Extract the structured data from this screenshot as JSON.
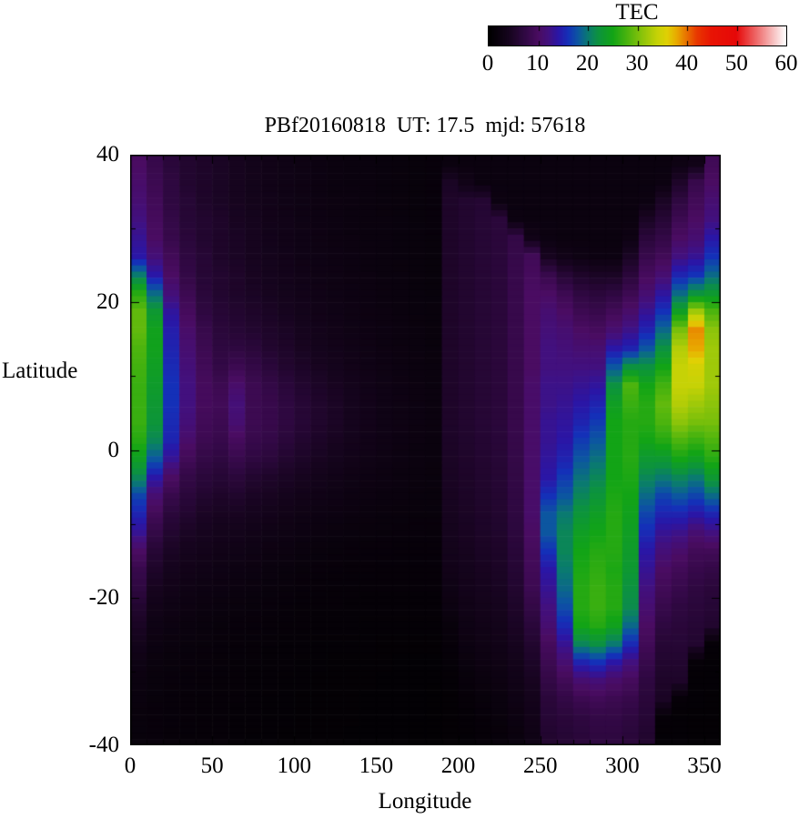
{
  "title": "PBf20160818  UT: 17.5  mjd: 57618",
  "colorbar": {
    "title": "TEC",
    "min": 0,
    "max": 60,
    "tick_labels": [
      0,
      10,
      20,
      30,
      40,
      50,
      60
    ],
    "palette_stops": [
      [
        0,
        "#000000"
      ],
      [
        4,
        "#16041e"
      ],
      [
        7,
        "#2e0840"
      ],
      [
        10,
        "#4a0c62"
      ],
      [
        12,
        "#42107e"
      ],
      [
        14,
        "#2a16a6"
      ],
      [
        16,
        "#1430b8"
      ],
      [
        18,
        "#0c56a0"
      ],
      [
        20,
        "#0a7a70"
      ],
      [
        22,
        "#0c9240"
      ],
      [
        25,
        "#12a416"
      ],
      [
        28,
        "#4cb40e"
      ],
      [
        31,
        "#8cc40a"
      ],
      [
        34,
        "#c6d206"
      ],
      [
        36,
        "#e0d004"
      ],
      [
        38,
        "#e8a800"
      ],
      [
        40,
        "#e87000"
      ],
      [
        42,
        "#e83800"
      ],
      [
        45,
        "#e81404"
      ],
      [
        50,
        "#e60808"
      ],
      [
        54,
        "#ee6868"
      ],
      [
        57,
        "#f6b4b4"
      ],
      [
        60,
        "#ffffff"
      ]
    ]
  },
  "chart_data": {
    "type": "heatmap",
    "title": "PBf20160818  UT: 17.5  mjd: 57618",
    "xlabel": "Longitude",
    "ylabel": "Latitude",
    "colorbar_label": "TEC",
    "xlim": [
      0,
      360
    ],
    "ylim": [
      -40,
      40
    ],
    "zlim": [
      0,
      60
    ],
    "xticks_major": [
      0,
      50,
      100,
      150,
      200,
      250,
      300,
      350
    ],
    "xticks_minor_step": 10,
    "yticks_major": [
      40,
      20,
      0,
      -20,
      -40
    ],
    "yticks_minor_step": 10,
    "grid": {
      "lon_start": 5,
      "lon_step": 10,
      "n_lon": 36,
      "lat_start": 38.75,
      "lat_step": -2.5,
      "n_lat": 32,
      "order": "values[lon_index][lat_index], lon ascending 0-360, lat descending +40 to -40",
      "units": "TECU",
      "values": [
        [
          10,
          10.5,
          11,
          12,
          13,
          14,
          20,
          26,
          29,
          29,
          28,
          27.5,
          27,
          27,
          27,
          26,
          24,
          21,
          17,
          15,
          13,
          10,
          8,
          7,
          5.5,
          4.5,
          3.5,
          2.5,
          2,
          1.8,
          1.6,
          1.5
        ],
        [
          8,
          8.5,
          9,
          9.5,
          10,
          11.5,
          14,
          19,
          23,
          24.5,
          24.5,
          24,
          23.5,
          23,
          22.5,
          21,
          18,
          14,
          11,
          9,
          7.5,
          6,
          5,
          4,
          3.2,
          2.6,
          2.2,
          1.8,
          1.6,
          1.5,
          1.4,
          1.4
        ],
        [
          6.5,
          7,
          7,
          7.5,
          8,
          9,
          10,
          11.5,
          13.5,
          14.5,
          15,
          15.5,
          16,
          16,
          15.5,
          15,
          13,
          10,
          8,
          6.5,
          5.5,
          4.5,
          3.8,
          3.2,
          2.6,
          2.2,
          1.8,
          1.6,
          1.4,
          1.3,
          1.3,
          1.2
        ],
        [
          5.5,
          5.5,
          6,
          6,
          6.5,
          7,
          7.5,
          8.5,
          9.5,
          10.5,
          11,
          11.5,
          12,
          12,
          11.5,
          10.5,
          9,
          7.5,
          6.5,
          5.5,
          4.5,
          3.8,
          3.2,
          2.7,
          2.3,
          1.9,
          1.6,
          1.4,
          1.3,
          1.2,
          1.2,
          1.1
        ],
        [
          5,
          5,
          5,
          5.5,
          5.5,
          6,
          6,
          6.5,
          7,
          8,
          8.5,
          9,
          9.5,
          9.5,
          9,
          8.5,
          7.5,
          6.5,
          5.5,
          4.5,
          4,
          3.4,
          2.9,
          2.4,
          2,
          1.7,
          1.5,
          1.3,
          1.2,
          1.1,
          1.1,
          1
        ],
        [
          4.5,
          4.5,
          4.5,
          5,
          5,
          5,
          5.5,
          5.5,
          6,
          6.5,
          7,
          7.5,
          8.5,
          9,
          8.5,
          8,
          7,
          6,
          5,
          4.2,
          3.6,
          3,
          2.6,
          2.2,
          1.8,
          1.5,
          1.3,
          1.2,
          1.1,
          1,
          1,
          1
        ],
        [
          4,
          4,
          4,
          4.2,
          4.5,
          4.5,
          5,
          5,
          5.5,
          6,
          7,
          8.5,
          10.5,
          11.5,
          11,
          9.5,
          8,
          6.5,
          5.2,
          4.2,
          3.5,
          2.9,
          2.4,
          2,
          1.7,
          1.4,
          1.2,
          1.1,
          1,
          1,
          0.9,
          0.9
        ],
        [
          3.5,
          3.5,
          3.5,
          3.8,
          4,
          4,
          4.2,
          4.5,
          5,
          5.5,
          6.5,
          7.5,
          8.5,
          8.5,
          8.5,
          8,
          7,
          5.5,
          4.5,
          3.8,
          3.1,
          2.6,
          2.2,
          1.8,
          1.5,
          1.3,
          1.1,
          1,
          0.9,
          0.9,
          0.9,
          0.8
        ],
        [
          3,
          3,
          3.2,
          3.2,
          3.4,
          3.6,
          3.8,
          4,
          4.5,
          5,
          5.5,
          6.5,
          7.5,
          8,
          8,
          7.5,
          6.5,
          5,
          4.2,
          3.4,
          2.8,
          2.3,
          1.9,
          1.6,
          1.4,
          1.2,
          1,
          0.9,
          0.9,
          0.8,
          0.8,
          0.8
        ],
        [
          2.8,
          2.8,
          2.8,
          3,
          3,
          3.2,
          3.4,
          3.6,
          4,
          4.5,
          5,
          5.5,
          6.5,
          7,
          7,
          6.5,
          5.5,
          4.5,
          3.7,
          3,
          2.5,
          2.1,
          1.7,
          1.5,
          1.2,
          1.1,
          0.9,
          0.9,
          0.8,
          0.8,
          0.8,
          0.7
        ],
        [
          2.5,
          2.5,
          2.5,
          2.6,
          2.8,
          2.8,
          3,
          3.2,
          3.5,
          3.8,
          4.2,
          4.8,
          5.5,
          6,
          6,
          5.5,
          4.8,
          4,
          3.2,
          2.7,
          2.2,
          1.8,
          1.5,
          1.3,
          1.1,
          1,
          0.9,
          0.8,
          0.8,
          0.7,
          0.7,
          0.7
        ],
        [
          2.2,
          2.2,
          2.3,
          2.4,
          2.5,
          2.6,
          2.7,
          2.9,
          3.1,
          3.4,
          3.7,
          4.2,
          4.8,
          5.2,
          5.2,
          4.8,
          4.2,
          3.5,
          2.9,
          2.4,
          2,
          1.6,
          1.4,
          1.2,
          1,
          0.9,
          0.8,
          0.8,
          0.7,
          0.7,
          0.7,
          0.7
        ],
        [
          2,
          2,
          2.1,
          2.2,
          2.3,
          2.4,
          2.5,
          2.6,
          2.8,
          3,
          3.3,
          3.7,
          4.2,
          4.6,
          4.6,
          4.2,
          3.7,
          3.1,
          2.6,
          2.2,
          1.8,
          1.5,
          1.3,
          1.1,
          1,
          0.9,
          0.8,
          0.7,
          0.7,
          0.7,
          0.7,
          0.7
        ],
        [
          1.9,
          1.9,
          2,
          2,
          2.1,
          2.2,
          2.3,
          2.4,
          2.5,
          2.7,
          2.9,
          3.2,
          3.6,
          3.9,
          3.9,
          3.6,
          3.2,
          2.7,
          2.3,
          2,
          1.7,
          1.4,
          1.2,
          1.1,
          0.9,
          0.9,
          0.8,
          0.7,
          0.7,
          0.7,
          0.7,
          0.6
        ],
        [
          1.8,
          1.8,
          1.8,
          1.9,
          1.9,
          2,
          2.1,
          2.2,
          2.3,
          2.4,
          2.6,
          2.8,
          3.1,
          3.3,
          3.3,
          3.1,
          2.8,
          2.4,
          2.1,
          1.8,
          1.6,
          1.3,
          1.2,
          1,
          0.9,
          0.8,
          0.8,
          0.7,
          0.7,
          0.6,
          0.6,
          0.6
        ],
        [
          1.7,
          1.7,
          1.7,
          1.8,
          1.8,
          1.9,
          1.9,
          2,
          2.1,
          2.2,
          2.3,
          2.5,
          2.7,
          2.8,
          2.8,
          2.7,
          2.5,
          2.2,
          1.9,
          1.7,
          1.5,
          1.3,
          1.1,
          1,
          0.9,
          0.8,
          0.7,
          0.7,
          0.6,
          0.6,
          0.6,
          0.6
        ],
        [
          1.6,
          1.6,
          1.6,
          1.7,
          1.7,
          1.7,
          1.8,
          1.8,
          1.9,
          2,
          2.1,
          2.2,
          2.4,
          2.5,
          2.5,
          2.4,
          2.2,
          2,
          1.8,
          1.6,
          1.4,
          1.2,
          1.1,
          1,
          0.9,
          0.8,
          0.7,
          0.6,
          0.6,
          0.6,
          0.6,
          0.6
        ],
        [
          1.5,
          1.5,
          1.5,
          1.5,
          1.6,
          1.6,
          1.6,
          1.7,
          1.7,
          1.8,
          1.9,
          2,
          2.1,
          2.2,
          2.2,
          2.1,
          2,
          1.8,
          1.7,
          1.5,
          1.4,
          1.2,
          1.1,
          1,
          0.9,
          0.8,
          0.7,
          0.6,
          0.6,
          0.6,
          0.6,
          0.5
        ],
        [
          1.4,
          1.4,
          1.4,
          1.4,
          1.5,
          1.5,
          1.5,
          1.5,
          1.6,
          1.6,
          1.7,
          1.8,
          1.9,
          2,
          2,
          1.9,
          1.8,
          1.7,
          1.6,
          1.5,
          1.3,
          1.2,
          1.1,
          1,
          0.9,
          0.8,
          0.7,
          0.6,
          0.6,
          0.5,
          0.5,
          0.5
        ],
        [
          2,
          4.5,
          5,
          5,
          5,
          5,
          5,
          5,
          5,
          5,
          5,
          5,
          5,
          5,
          5,
          4.8,
          4.6,
          4.4,
          4.2,
          4,
          3.8,
          3.5,
          3.2,
          2.6,
          2.2,
          1.5,
          1.2,
          1,
          0.8,
          0.7,
          0.7,
          0.7
        ],
        [
          2,
          3,
          5.5,
          5.5,
          5.5,
          5.5,
          5.5,
          5.5,
          5.5,
          5.5,
          5.5,
          5.5,
          5.5,
          5.5,
          5.5,
          5.3,
          5.1,
          4.9,
          4.7,
          4.5,
          4.3,
          4,
          3.7,
          3.4,
          3,
          2.6,
          2.2,
          1.8,
          1.4,
          1.1,
          0.9,
          0.8
        ],
        [
          2,
          2,
          5.8,
          6,
          6,
          6,
          6,
          6,
          6,
          6,
          6,
          6,
          6,
          6,
          6,
          5.8,
          5.6,
          5.4,
          5.2,
          5,
          4.8,
          4.5,
          4.2,
          3.9,
          3.5,
          3.1,
          2.7,
          2.3,
          1.9,
          1.5,
          1.2,
          1
        ],
        [
          2,
          2,
          2.2,
          6.5,
          6.5,
          6.5,
          6.5,
          6.5,
          6.5,
          6.5,
          6.5,
          6.5,
          6.5,
          6.5,
          6.5,
          6.3,
          6.1,
          5.9,
          5.7,
          5.5,
          5.2,
          4.9,
          4.6,
          4.3,
          3.9,
          3.5,
          3.1,
          2.7,
          2.3,
          1.9,
          1.6,
          1.3
        ],
        [
          2,
          2,
          2,
          2.2,
          7.5,
          7.8,
          8,
          8,
          8,
          8,
          8,
          8,
          8,
          8,
          8,
          7.8,
          7.6,
          7.4,
          7.2,
          7,
          6.7,
          6.3,
          5.9,
          5.5,
          5,
          4.5,
          4,
          3.5,
          3,
          2.6,
          2.2,
          1.8
        ],
        [
          2,
          2,
          2,
          2,
          3,
          9,
          9.5,
          10,
          10,
          10,
          10,
          10,
          10.5,
          10.5,
          10.5,
          10.5,
          10.5,
          10.5,
          10.5,
          10.5,
          10,
          9.5,
          9,
          8.5,
          7.5,
          6.5,
          5.5,
          4.8,
          4.2,
          3.6,
          3.2,
          2.8
        ],
        [
          2,
          2,
          2,
          2,
          2.2,
          4,
          8,
          10,
          11,
          11.5,
          12,
          12,
          12.5,
          12.5,
          13,
          13,
          13.5,
          14,
          16,
          18,
          18,
          16,
          14,
          13,
          12,
          11,
          9.5,
          8.5,
          7.5,
          6.5,
          6,
          5.5
        ],
        [
          2,
          2,
          2,
          2,
          2,
          3,
          6,
          8.5,
          10,
          11,
          11.5,
          12,
          12.5,
          13,
          13.5,
          14,
          15,
          16.5,
          18,
          20,
          21,
          21,
          20,
          19,
          17.5,
          15.5,
          13,
          11,
          9,
          7.5,
          6.5,
          6
        ],
        [
          2,
          2,
          2,
          2,
          2,
          2.5,
          5,
          7,
          8.5,
          10,
          11,
          12,
          13,
          14,
          15,
          16.5,
          18,
          19.5,
          21,
          22.5,
          24,
          25,
          25.5,
          26,
          26,
          25,
          21,
          15,
          11,
          8.5,
          7,
          6.5
        ],
        [
          2,
          2,
          2,
          2,
          2,
          2.2,
          4.5,
          6.5,
          8,
          9.5,
          11,
          12,
          13.5,
          15,
          16.5,
          18,
          19.5,
          21,
          22.5,
          24,
          25,
          26,
          26.5,
          27,
          27,
          26,
          22,
          16,
          11.5,
          9,
          7.5,
          7
        ],
        [
          2,
          2,
          2,
          2,
          2,
          2.2,
          4.5,
          7,
          9,
          11,
          14,
          18,
          22,
          24,
          25,
          25,
          25,
          25,
          25.5,
          26,
          26,
          26,
          25.5,
          26,
          26,
          24.5,
          20,
          14,
          10.5,
          8.5,
          7.5,
          7
        ],
        [
          2,
          2,
          2,
          2,
          2.5,
          4.5,
          6.5,
          8.5,
          10.5,
          12.5,
          15,
          22,
          28,
          27,
          26,
          26,
          26,
          25.5,
          25,
          24.5,
          24,
          23.5,
          23,
          22,
          21.5,
          19,
          15.5,
          12,
          9.5,
          8,
          7,
          6.5
        ],
        [
          2,
          2,
          2.2,
          4.5,
          6.5,
          8,
          9.5,
          11,
          13,
          15,
          18,
          22,
          25,
          26,
          26,
          25,
          23,
          21,
          19,
          17,
          15.5,
          14,
          13,
          12,
          11,
          10,
          9,
          8,
          7,
          6.5,
          6,
          5.5
        ],
        [
          2,
          2.2,
          4.5,
          6,
          7.5,
          9,
          11,
          13.5,
          16,
          19,
          22,
          25,
          27.5,
          29,
          28,
          26,
          23,
          20,
          17,
          15,
          13,
          11.5,
          10,
          9,
          8,
          7,
          6,
          5.5,
          5,
          4.5,
          1,
          0.8
        ],
        [
          2.5,
          5,
          7,
          8.5,
          10,
          12,
          15,
          19,
          24,
          30,
          33,
          34,
          34,
          33,
          31,
          28,
          25,
          21,
          18,
          15,
          12.5,
          10.5,
          9,
          8,
          7,
          6.5,
          6,
          5.5,
          5,
          1,
          0.8,
          0.8
        ],
        [
          3,
          8,
          9,
          10,
          11,
          13,
          16,
          22,
          32,
          39,
          38,
          35,
          34,
          32,
          30,
          27,
          24,
          20,
          17,
          14,
          11,
          9,
          8,
          7,
          6.5,
          6,
          5.5,
          1,
          0.8,
          0.8,
          0.7,
          0.7
        ],
        [
          9,
          10,
          11,
          12,
          14,
          16,
          19,
          23,
          28,
          31,
          32,
          32,
          32,
          31,
          30,
          28,
          26,
          23,
          19,
          15,
          12,
          9,
          7.5,
          6.5,
          6,
          5.5,
          1,
          0.8,
          0.8,
          0.7,
          0.7,
          0.7
        ]
      ]
    }
  }
}
